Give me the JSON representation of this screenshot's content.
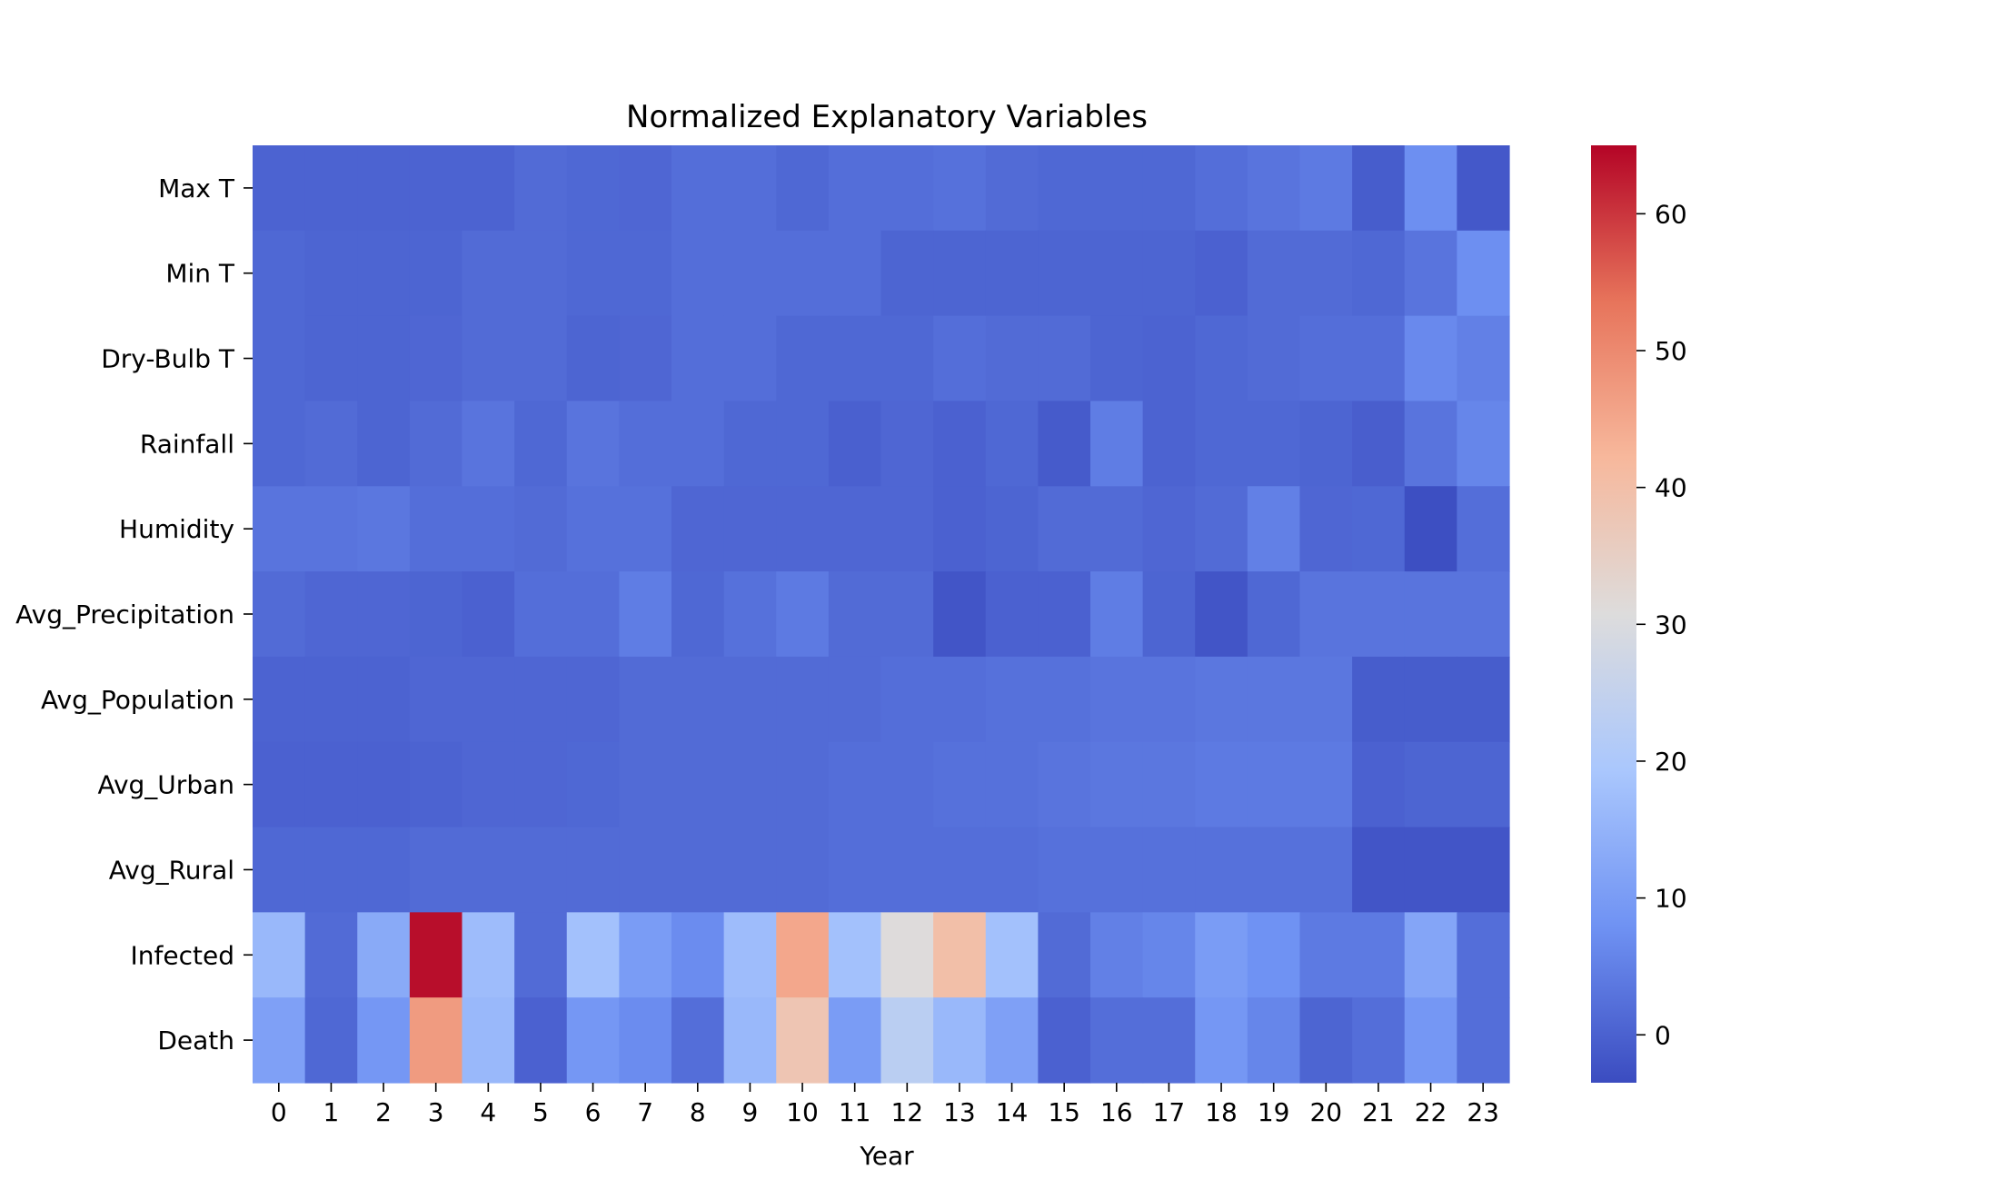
{
  "chart_data": {
    "type": "heatmap",
    "title": "Normalized Explanatory Variables",
    "xlabel": "Year",
    "ylabel": "",
    "colormap": "coolwarm",
    "color_stops": [
      "#3b4cc0",
      "#6f92f3",
      "#aac7fd",
      "#dddcdc",
      "#f7b89c",
      "#e7745b",
      "#b40426"
    ],
    "vmin": -3.5,
    "vmax": 65,
    "colorbar_ticks": [
      0,
      10,
      20,
      30,
      40,
      50,
      60
    ],
    "x_categories": [
      "0",
      "1",
      "2",
      "3",
      "4",
      "5",
      "6",
      "7",
      "8",
      "9",
      "10",
      "11",
      "12",
      "13",
      "14",
      "15",
      "16",
      "17",
      "18",
      "19",
      "20",
      "21",
      "22",
      "23"
    ],
    "y_categories": [
      "Max T",
      "Min T",
      "Dry-Bulb T",
      "Rainfall",
      "Humidity",
      "Avg_Precipitation",
      "Avg_Population",
      "Avg_Urban",
      "Avg_Rural",
      "Infected",
      "Death"
    ],
    "values": [
      [
        0.3,
        0.3,
        0.3,
        0.3,
        0.3,
        1.5,
        1.0,
        0.8,
        2.0,
        2.0,
        1.0,
        2.0,
        2.0,
        2.5,
        1.5,
        1.0,
        1.0,
        1.0,
        2.0,
        3.0,
        4.0,
        -0.8,
        7.5,
        -1.5
      ],
      [
        1.0,
        0.5,
        0.5,
        0.5,
        1.5,
        1.5,
        1.0,
        1.0,
        2.0,
        2.0,
        2.0,
        2.0,
        0.5,
        0.5,
        0.5,
        0.5,
        0.5,
        0.5,
        0.0,
        1.5,
        1.5,
        1.0,
        3.0,
        7.5
      ],
      [
        1.0,
        0.5,
        0.5,
        0.8,
        1.5,
        1.5,
        0.5,
        0.8,
        2.0,
        2.0,
        1.0,
        1.0,
        1.0,
        2.0,
        1.5,
        1.5,
        0.5,
        0.3,
        1.0,
        1.5,
        2.0,
        2.0,
        6.5,
        5.0
      ],
      [
        1.0,
        1.5,
        0.5,
        1.5,
        3.0,
        1.0,
        3.0,
        2.0,
        2.0,
        1.0,
        1.0,
        -0.2,
        0.8,
        0.0,
        1.0,
        -1.0,
        4.5,
        0.3,
        1.0,
        1.0,
        0.5,
        -0.5,
        3.0,
        6.0
      ],
      [
        3.0,
        3.0,
        3.5,
        2.0,
        2.0,
        1.5,
        2.5,
        2.5,
        0.8,
        0.8,
        0.8,
        0.8,
        0.8,
        0.0,
        0.5,
        1.5,
        1.5,
        0.8,
        1.5,
        5.0,
        0.8,
        1.0,
        -3.0,
        2.0
      ],
      [
        1.5,
        0.8,
        0.8,
        0.5,
        0.0,
        2.0,
        2.0,
        4.5,
        1.0,
        2.5,
        4.0,
        1.5,
        1.5,
        -2.0,
        0.0,
        0.0,
        4.5,
        0.5,
        -2.0,
        1.0,
        3.0,
        3.0,
        3.0,
        3.0
      ],
      [
        0.3,
        0.3,
        0.3,
        0.8,
        0.8,
        0.8,
        0.8,
        1.5,
        1.5,
        1.5,
        1.5,
        1.5,
        2.0,
        2.0,
        2.5,
        2.5,
        3.0,
        3.0,
        3.5,
        3.5,
        3.5,
        -0.8,
        -0.8,
        -0.8
      ],
      [
        0.0,
        0.0,
        0.0,
        0.3,
        0.8,
        0.8,
        1.0,
        1.5,
        1.5,
        1.5,
        1.5,
        2.0,
        2.0,
        2.5,
        2.5,
        3.0,
        3.5,
        3.5,
        4.0,
        4.0,
        4.0,
        0.0,
        0.5,
        0.5
      ],
      [
        1.0,
        1.0,
        1.0,
        1.5,
        1.5,
        1.5,
        1.5,
        1.5,
        1.5,
        1.5,
        1.5,
        2.0,
        2.0,
        2.0,
        2.0,
        2.5,
        2.5,
        2.5,
        2.5,
        2.5,
        2.5,
        -2.0,
        -2.0,
        -2.0
      ],
      [
        16.0,
        1.5,
        13.0,
        64.0,
        17.0,
        1.5,
        18.0,
        10.0,
        7.0,
        17.0,
        45.0,
        18.0,
        31.0,
        40.0,
        18.0,
        1.5,
        5.0,
        6.0,
        10.0,
        8.0,
        4.0,
        4.0,
        12.0,
        2.0
      ],
      [
        11.0,
        1.0,
        9.0,
        47.0,
        16.0,
        0.0,
        9.0,
        7.0,
        2.0,
        16.0,
        38.0,
        10.0,
        23.0,
        16.0,
        11.0,
        0.0,
        2.0,
        2.0,
        9.0,
        6.0,
        0.5,
        2.0,
        9.0,
        2.0
      ]
    ]
  }
}
